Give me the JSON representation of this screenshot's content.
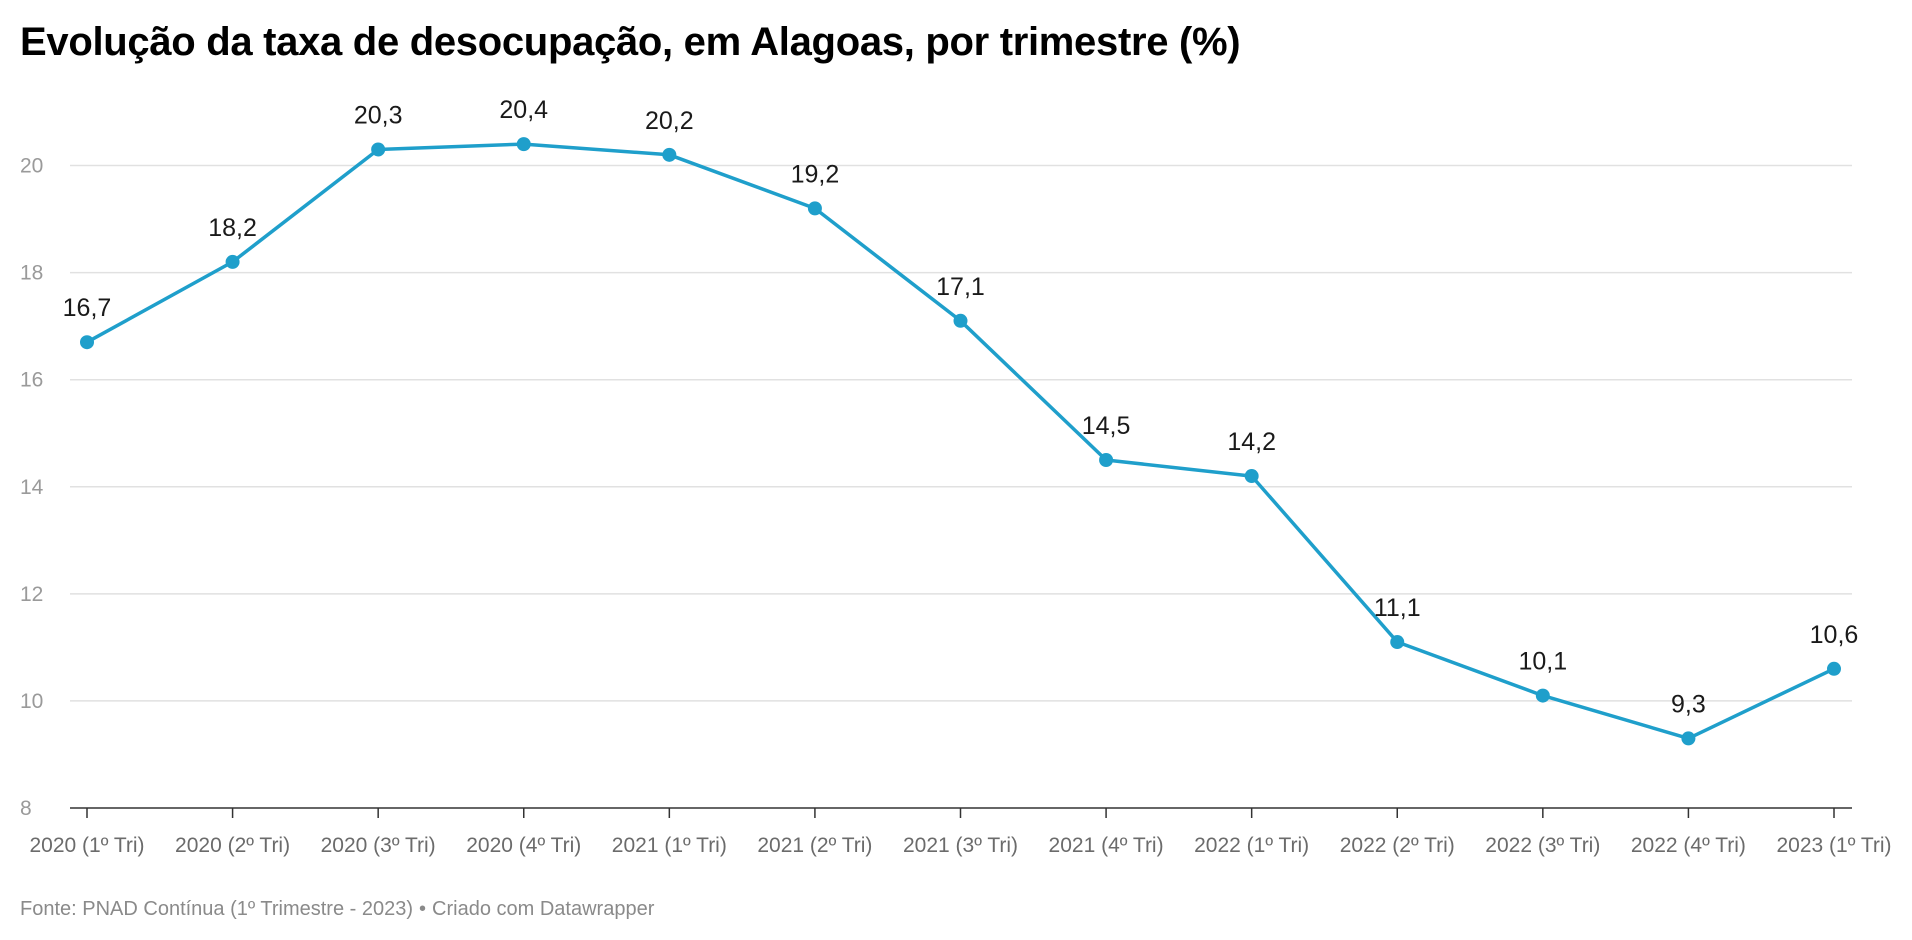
{
  "chart_data": {
    "type": "line",
    "title": "Evolução da taxa de desocupação, em Alagoas, por trimestre (%)",
    "categories": [
      "2020 (1º Tri)",
      "2020 (2º Tri)",
      "2020 (3º Tri)",
      "2020 (4º Tri)",
      "2021 (1º Tri)",
      "2021 (2º Tri)",
      "2021 (3º Tri)",
      "2021 (4º Tri)",
      "2022 (1º Tri)",
      "2022 (2º Tri)",
      "2022 (3º Tri)",
      "2022 (4º Tri)",
      "2023 (1º Tri)"
    ],
    "values": [
      16.7,
      18.2,
      20.3,
      20.4,
      20.2,
      19.2,
      17.1,
      14.5,
      14.2,
      11.1,
      10.1,
      9.3,
      10.6
    ],
    "value_labels": [
      "16,7",
      "18,2",
      "20,3",
      "20,4",
      "20,2",
      "19,2",
      "17,1",
      "14,5",
      "14,2",
      "11,1",
      "10,1",
      "9,3",
      "10,6"
    ],
    "y_ticks": [
      8,
      10,
      12,
      14,
      16,
      18,
      20
    ],
    "ylim": [
      8,
      21
    ],
    "xlabel": "",
    "ylabel": "",
    "grid": true,
    "legend": "none",
    "colors": {
      "line": "#1f9fcb",
      "grid": "#e1e1e1",
      "axis": "#333333",
      "tick_label": "#9a9a9a",
      "x_label": "#6b6b6b",
      "data_label": "#1a1a1a"
    }
  },
  "footer": {
    "source": "Fonte: PNAD Contínua (1º Trimestre - 2023)",
    "separator": "•",
    "credit": "Criado com Datawrapper"
  }
}
